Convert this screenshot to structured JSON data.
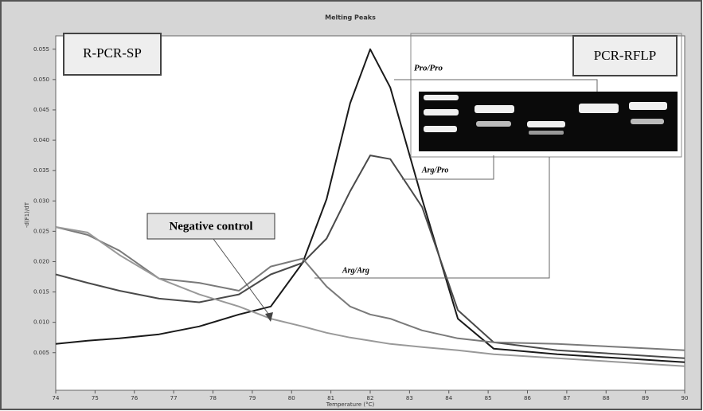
{
  "chart_data": {
    "type": "line",
    "title": "Melting Peaks",
    "x_label": "Temperature (°C)",
    "y_label": "-d(F1)/dT",
    "panel_labels": [
      "R-PCR-SP",
      "PCR-RFLP"
    ],
    "x": [
      74,
      74.81,
      75.62,
      76.63,
      77.65,
      78.66,
      79.47,
      80.28,
      80.89,
      81.49,
      82,
      82.51,
      83.32,
      84.23,
      85.14,
      86.76,
      88.38,
      90
    ],
    "series": [
      {
        "name": "Pro/Pro",
        "color": "#1a1a1a",
        "values": [
          0.00644,
          0.00697,
          0.00736,
          0.00802,
          0.00933,
          0.0113,
          0.0126,
          0.0198,
          0.0303,
          0.0461,
          0.055,
          0.0487,
          0.0303,
          0.0106,
          0.00566,
          0.00474,
          0.00408,
          0.00343
        ]
      },
      {
        "name": "Arg/Pro",
        "color": "#4a4a4a",
        "values": [
          0.0179,
          0.0165,
          0.0152,
          0.0139,
          0.0133,
          0.0146,
          0.0179,
          0.0198,
          0.0238,
          0.0316,
          0.0375,
          0.0369,
          0.029,
          0.012,
          0.00671,
          0.00539,
          0.00474,
          0.00408
        ]
      },
      {
        "name": "Arg/Arg",
        "color": "#7a7a7a",
        "values": [
          0.0257,
          0.0244,
          0.0218,
          0.0172,
          0.0165,
          0.0152,
          0.0192,
          0.0205,
          0.0159,
          0.0126,
          0.0113,
          0.0106,
          0.00867,
          0.00736,
          0.00671,
          0.00644,
          0.00592,
          0.00539
        ]
      },
      {
        "name": "Negative control",
        "color": "#999999",
        "values": [
          0.0257,
          0.0248,
          0.0211,
          0.0172,
          0.0146,
          0.0126,
          0.0106,
          0.00933,
          0.00828,
          0.00749,
          0.00697,
          0.00644,
          0.00592,
          0.00539,
          0.00474,
          0.00408,
          0.00343,
          0.00277
        ]
      }
    ],
    "xlim": [
      74,
      90
    ],
    "xticks": [
      74,
      75,
      76,
      77,
      78,
      79,
      80,
      81,
      82,
      83,
      84,
      85,
      86,
      87,
      88,
      89,
      90
    ],
    "ylim": [
      -0.0012,
      0.0572
    ],
    "yticks": [
      0.005,
      {
        "value": 0.01,
        "label": "0.010"
      },
      0.015,
      {
        "value": 0.02,
        "label": "0.020"
      },
      0.025,
      {
        "value": 0.03,
        "label": "0.030"
      },
      0.035,
      {
        "value": 0.04,
        "label": "0.040"
      },
      0.045,
      {
        "value": 0.05,
        "label": "0.050"
      },
      0.055
    ],
    "grid": false
  }
}
